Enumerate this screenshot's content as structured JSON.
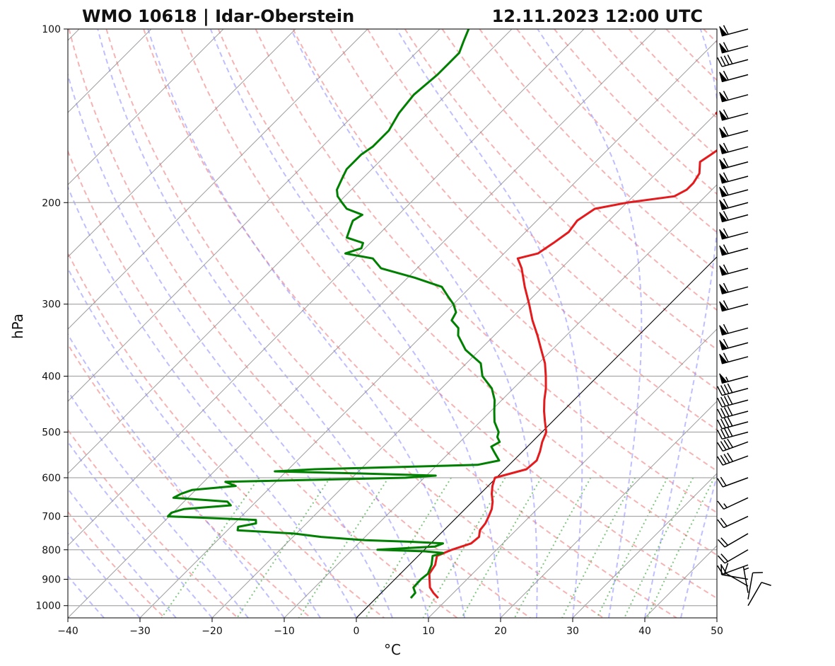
{
  "chart_data": {
    "type": "skew-t",
    "title_left": "WMO 10618 | Idar-Oberstein",
    "title_right": "12.11.2023 12:00 UTC",
    "xlabel": "°C",
    "ylabel": "hPa",
    "xlim": [
      -40,
      50
    ],
    "ylim": [
      1050,
      100
    ],
    "x_ticks": [
      -40,
      -30,
      -20,
      -10,
      0,
      10,
      20,
      30,
      40,
      50
    ],
    "x_tick_labels": [
      "−40",
      "−30",
      "−20",
      "−10",
      "0",
      "10",
      "20",
      "30",
      "40",
      "50"
    ],
    "y_ticks": [
      1000,
      900,
      800,
      700,
      600,
      500,
      400,
      300,
      200,
      100
    ],
    "y_tick_labels": [
      "1000",
      "900",
      "800",
      "700",
      "600",
      "500",
      "400",
      "300",
      "200",
      "100"
    ],
    "y_scale": "log",
    "grid": true,
    "series": [
      {
        "color": "#e41a1c",
        "pressure_hPa": [
          970,
          950,
          930,
          900,
          880,
          850,
          820,
          800,
          780,
          760,
          740,
          720,
          700,
          680,
          660,
          640,
          620,
          600,
          580,
          560,
          540,
          520,
          500,
          480,
          460,
          440,
          420,
          400,
          380,
          360,
          340,
          320,
          300,
          280,
          260,
          250,
          245,
          235,
          225,
          215,
          205,
          200,
          195,
          190,
          185,
          178,
          170,
          165,
          160,
          155,
          148,
          140,
          135,
          130,
          125,
          120,
          115,
          110,
          105,
          100
        ],
        "temperature_C": [
          8.6,
          7.2,
          6.0,
          4.8,
          4.0,
          3.6,
          2.6,
          3.8,
          5.6,
          5.8,
          5.0,
          4.8,
          4.3,
          3.7,
          2.8,
          1.6,
          0.6,
          -0.2,
          3.0,
          3.2,
          2.4,
          1.4,
          0.6,
          -1.0,
          -2.6,
          -4.1,
          -5.5,
          -7.2,
          -9.1,
          -11.5,
          -14.0,
          -16.8,
          -19.5,
          -22.5,
          -25.5,
          -27.4,
          -25.3,
          -24.6,
          -24.0,
          -24.4,
          -23.6,
          -20.0,
          -14.3,
          -13.5,
          -13.5,
          -14.0,
          -15.5,
          -15.0,
          -14.5,
          -13.8,
          -16.0,
          -20.0,
          -20.0,
          -21.0,
          -22.5,
          -22.5,
          -24.5,
          -26.0,
          -27.0,
          -29.0
        ]
      },
      {
        "color": "#008000",
        "pressure_hPa": [
          970,
          950,
          930,
          900,
          880,
          850,
          820,
          815,
          810,
          805,
          800,
          790,
          780,
          775,
          770,
          760,
          750,
          740,
          730,
          720,
          710,
          700,
          690,
          680,
          670,
          660,
          650,
          640,
          630,
          620,
          610,
          600,
          595,
          590,
          585,
          580,
          570,
          560,
          550,
          540,
          530,
          520,
          510,
          500,
          480,
          460,
          440,
          420,
          400,
          380,
          360,
          340,
          330,
          320,
          310,
          300,
          290,
          280,
          270,
          260,
          250,
          245,
          240,
          235,
          230,
          220,
          215,
          210,
          205,
          200,
          195,
          190,
          185,
          180,
          175,
          170,
          165,
          160,
          150,
          140,
          130,
          120,
          110,
          105,
          100
        ],
        "dewpoint_C": [
          4.8,
          4.7,
          3.7,
          3.6,
          3.8,
          3.1,
          2.0,
          2.5,
          3.0,
          0.3,
          -6.5,
          1.0,
          1.7,
          -2.9,
          -9.5,
          -16.1,
          -20.3,
          -28.6,
          -29.0,
          -27.0,
          -27.5,
          -40.2,
          -40.2,
          -39.0,
          -33.0,
          -34.0,
          -42.0,
          -41.5,
          -40.5,
          -35.0,
          -37.0,
          -12.6,
          -8.7,
          -19.3,
          -31.6,
          -26.3,
          -4.4,
          -2.0,
          -3.0,
          -4.0,
          -5.0,
          -4.5,
          -5.5,
          -6.0,
          -8.0,
          -9.5,
          -11.0,
          -13.0,
          -16.0,
          -18.0,
          -22.0,
          -25.0,
          -26.0,
          -28.0,
          -28.5,
          -30.0,
          -32.0,
          -34.0,
          -39.0,
          -45.0,
          -47.5,
          -52.0,
          -50.5,
          -51.0,
          -54.0,
          -55.0,
          -55.5,
          -55.0,
          -58.0,
          -59.5,
          -61.0,
          -62.0,
          -62.5,
          -63.0,
          -63.5,
          -63.5,
          -63.5,
          -63.0,
          -63.0,
          -64.0,
          -64.5,
          -64.0,
          -64.0,
          -65.0,
          -66.0
        ]
      }
    ],
    "wind_barbs": {
      "pressure_hPa": [
        1000,
        975,
        950,
        925,
        900,
        850,
        800,
        750,
        700,
        650,
        600,
        550,
        520,
        500,
        480,
        460,
        440,
        420,
        400,
        370,
        350,
        330,
        300,
        280,
        260,
        240,
        225,
        210,
        200,
        190,
        180,
        170,
        160,
        150,
        140,
        130,
        120,
        113,
        107,
        100
      ],
      "direction_deg": [
        30,
        10,
        350,
        300,
        280,
        250,
        240,
        240,
        245,
        245,
        250,
        250,
        250,
        255,
        255,
        255,
        255,
        255,
        255,
        255,
        255,
        255,
        255,
        255,
        255,
        255,
        255,
        255,
        255,
        255,
        255,
        255,
        255,
        255,
        255,
        255,
        255,
        255,
        255,
        255
      ],
      "speed_kt": [
        10,
        10,
        5,
        10,
        15,
        20,
        20,
        20,
        20,
        15,
        20,
        40,
        40,
        40,
        40,
        40,
        40,
        40,
        55,
        60,
        60,
        60,
        60,
        60,
        60,
        60,
        60,
        60,
        60,
        60,
        60,
        60,
        60,
        60,
        60,
        60,
        60,
        40,
        60,
        60
      ]
    }
  }
}
